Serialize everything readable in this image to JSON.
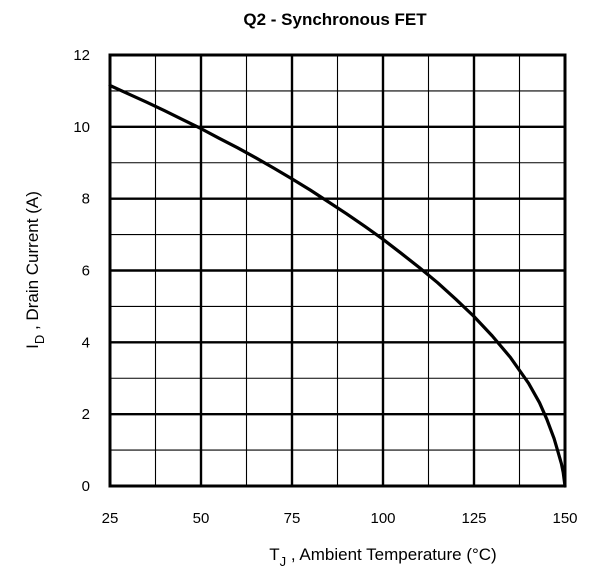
{
  "chart_data": {
    "type": "line",
    "title": "Q2 - Synchronous FET",
    "xlabel": {
      "symbol": "T",
      "subscript": "J",
      "text": " , Ambient Temperature (°C)"
    },
    "ylabel": {
      "symbol": "I",
      "subscript": "D",
      "text": " , Drain Current (A)"
    },
    "xlim": [
      25,
      150
    ],
    "ylim": [
      0,
      12
    ],
    "x_ticks": [
      "25",
      "50",
      "75",
      "100",
      "125",
      "150"
    ],
    "y_ticks": [
      "0",
      "2",
      "4",
      "6",
      "8",
      "10",
      "12"
    ],
    "x_minor_step": 12.5,
    "y_minor_step": 1,
    "grid": true,
    "series": [
      {
        "x": [
          25,
          30,
          35,
          40,
          45,
          50,
          55,
          60,
          65,
          70,
          75,
          80,
          85,
          90,
          95,
          100,
          105,
          110,
          115,
          120,
          125,
          130,
          135,
          140,
          143,
          145,
          147,
          148,
          149,
          149.5,
          150
        ],
        "y": [
          11.15,
          10.92,
          10.69,
          10.45,
          10.2,
          9.95,
          9.68,
          9.42,
          9.14,
          8.85,
          8.55,
          8.24,
          7.91,
          7.58,
          7.23,
          6.87,
          6.48,
          6.08,
          5.66,
          5.2,
          4.72,
          4.18,
          3.58,
          2.86,
          2.32,
          1.86,
          1.32,
          0.98,
          0.62,
          0.38,
          0.0
        ],
        "color": "#000000"
      }
    ]
  }
}
